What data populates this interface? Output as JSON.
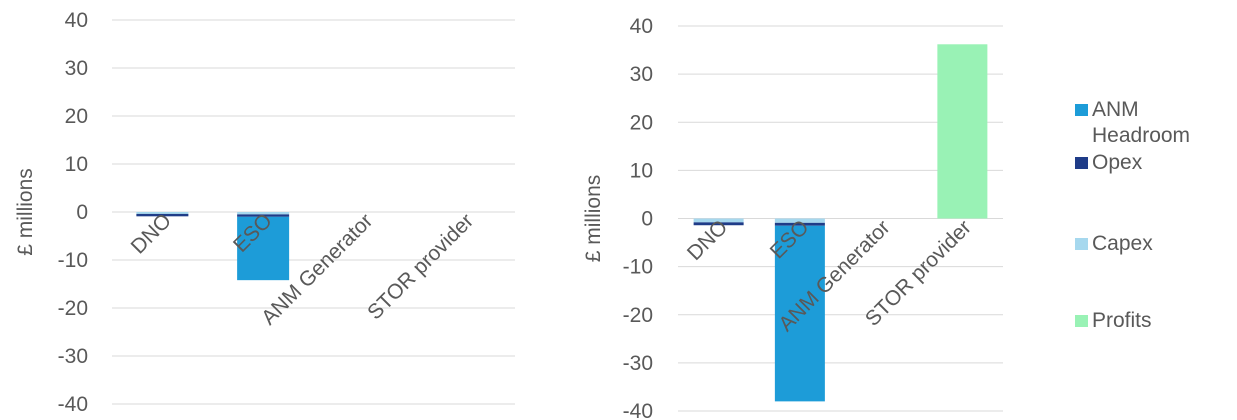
{
  "colors": {
    "anm_headroom": "#1d9cd8",
    "opex": "#1f3c88",
    "capex": "#a6d8ee",
    "profits": "#99f2b5",
    "gridline": "#d9d9d9",
    "text": "#595959"
  },
  "legend": [
    {
      "label": "ANM Headroom",
      "color_key": "anm_headroom"
    },
    {
      "label": "Opex",
      "color_key": "opex"
    },
    {
      "label": "Capex",
      "color_key": "capex"
    },
    {
      "label": "Profits",
      "color_key": "profits"
    }
  ],
  "chart_data": [
    {
      "type": "bar",
      "stacked": true,
      "title": "",
      "xlabel": "",
      "ylabel": "£ millions",
      "ylim": [
        -40,
        40
      ],
      "yticks": [
        40,
        30,
        20,
        10,
        0,
        -10,
        -20,
        -30,
        -40
      ],
      "grid": true,
      "categories": [
        "DNO",
        "ESO",
        "ANM Generator",
        "STOR provider"
      ],
      "series": [
        {
          "name": "Capex",
          "color_key": "capex",
          "values": [
            -0.4,
            -0.5,
            0,
            0
          ]
        },
        {
          "name": "Opex",
          "color_key": "opex",
          "values": [
            -0.5,
            -0.5,
            0,
            0
          ]
        },
        {
          "name": "ANM Headroom",
          "color_key": "anm_headroom",
          "values": [
            0,
            -13.2,
            0,
            0
          ]
        },
        {
          "name": "Profits",
          "color_key": "profits",
          "values": [
            0,
            0,
            0,
            0
          ]
        }
      ]
    },
    {
      "type": "bar",
      "stacked": true,
      "title": "",
      "xlabel": "",
      "ylabel": "£ millions",
      "ylim": [
        -40,
        40
      ],
      "yticks": [
        40,
        30,
        20,
        10,
        0,
        -10,
        -20,
        -30,
        -40
      ],
      "grid": true,
      "categories": [
        "DNO",
        "ESO",
        "ANM Generator",
        "STOR provider"
      ],
      "series": [
        {
          "name": "Capex",
          "color_key": "capex",
          "values": [
            -0.8,
            -0.9,
            0,
            0
          ]
        },
        {
          "name": "Opex",
          "color_key": "opex",
          "values": [
            -0.6,
            -0.6,
            0,
            0
          ]
        },
        {
          "name": "ANM Headroom",
          "color_key": "anm_headroom",
          "values": [
            0,
            -36.5,
            0,
            0
          ]
        },
        {
          "name": "Profits",
          "color_key": "profits",
          "values": [
            0,
            0,
            0,
            36.2
          ]
        }
      ]
    }
  ]
}
